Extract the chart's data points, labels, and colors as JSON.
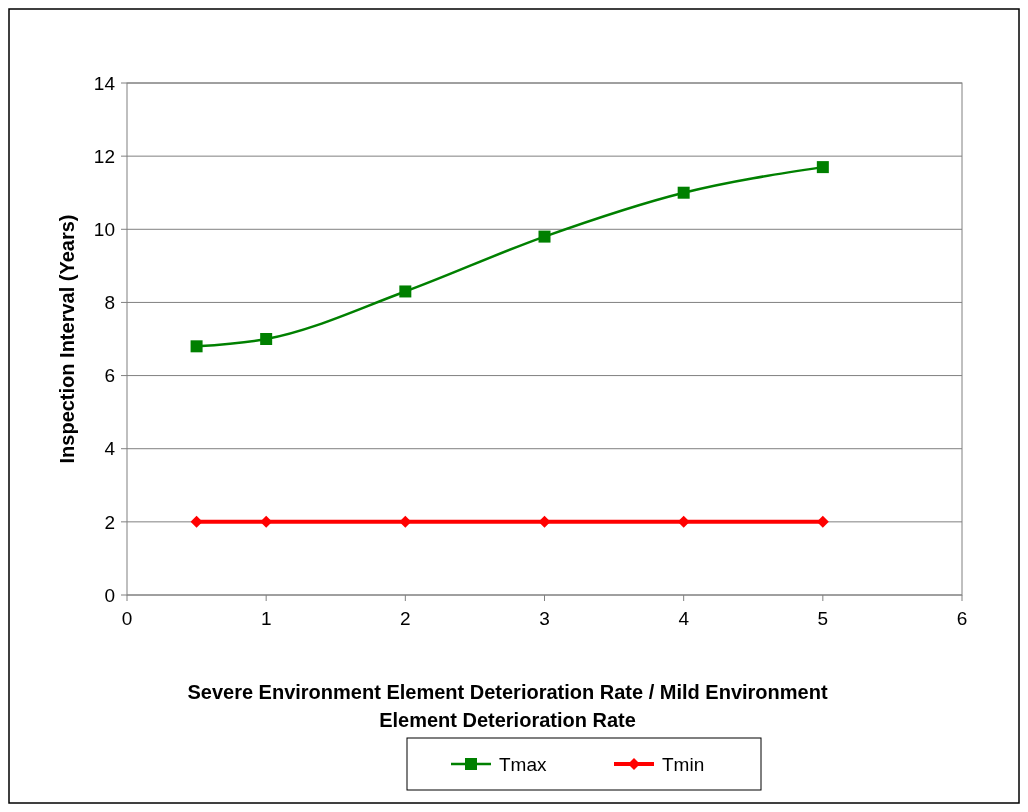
{
  "chart_data": {
    "type": "line",
    "xlabel": "Severe Environment Element Deterioration Rate / Mild Environment Element Deterioration Rate",
    "ylabel": "Inspection Interval (Years)",
    "x": [
      0.5,
      1,
      2,
      3,
      4,
      5
    ],
    "series": [
      {
        "name": "Tmax",
        "color": "#008000",
        "marker": "square",
        "values": [
          6.8,
          7.0,
          8.3,
          9.8,
          11.0,
          11.7
        ]
      },
      {
        "name": "Tmin",
        "color": "#ff0000",
        "marker": "diamond",
        "values": [
          2,
          2,
          2,
          2,
          2,
          2
        ]
      }
    ],
    "xlim": [
      0,
      6
    ],
    "xticks": [
      0,
      1,
      2,
      3,
      4,
      5,
      6
    ],
    "ylim": [
      0,
      14
    ],
    "yticks": [
      0,
      2,
      4,
      6,
      8,
      10,
      12,
      14
    ],
    "grid": "y",
    "legend": "bottom",
    "line_style": "solid"
  }
}
